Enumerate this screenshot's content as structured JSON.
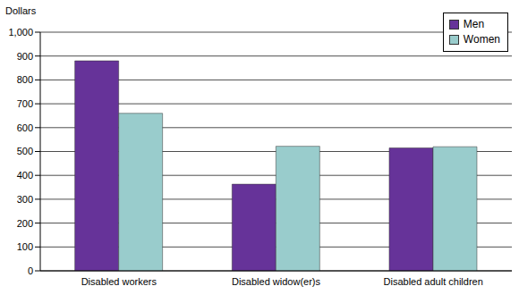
{
  "chart_data": {
    "type": "bar",
    "y_label": "Dollars",
    "categories": [
      "Disabled workers",
      "Disabled widow(er)s",
      "Disabled adult children"
    ],
    "series": [
      {
        "name": "Men",
        "color": "#663399",
        "values": [
          880,
          363,
          515
        ]
      },
      {
        "name": "Women",
        "color": "#99cccc",
        "values": [
          660,
          522,
          520
        ]
      }
    ],
    "ylim": [
      0,
      1000
    ],
    "yticks": [
      0,
      100,
      200,
      300,
      400,
      500,
      600,
      700,
      800,
      900,
      {
        "value": 1000,
        "label": "1,000"
      }
    ],
    "grid": true,
    "legend": "upper right"
  }
}
